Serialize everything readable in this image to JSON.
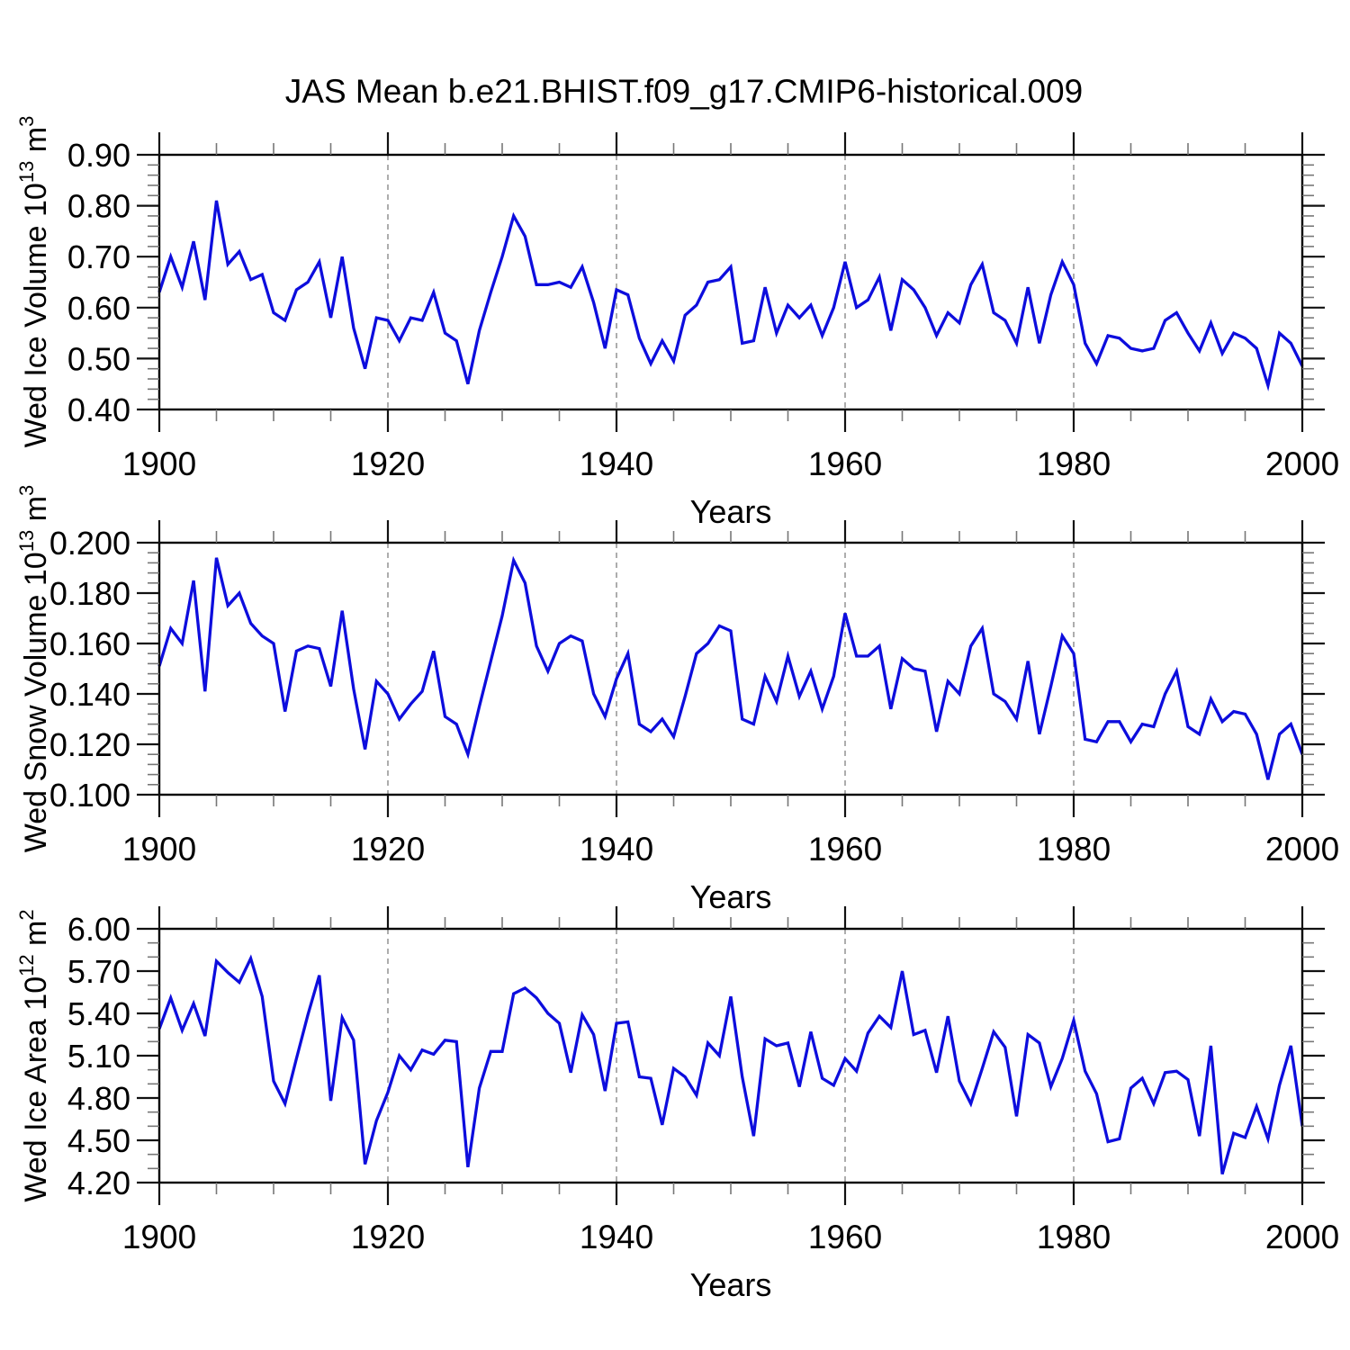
{
  "title": "JAS Mean b.e21.BHIST.f09_g17.CMIP6-historical.009",
  "chart_data": [
    {
      "type": "line",
      "ylabel": {
        "base": "Wed Ice Volume 10",
        "exp": "13",
        "unit": " m",
        "unit_exp": "3"
      },
      "xlabel": "Years",
      "series_color": "#0d0ddd",
      "axis_color": "#000000",
      "grid_color": "#8a8a8a",
      "grid_style": "dashed",
      "legend": "none",
      "xlim": [
        1900,
        2000
      ],
      "ylim": [
        0.4,
        0.9
      ],
      "xticks": [
        1900,
        1920,
        1940,
        1960,
        1980,
        2000
      ],
      "xtick_labels": [
        "1900",
        "1920",
        "1940",
        "1960",
        "1980",
        "2000"
      ],
      "x_minor_step": 5,
      "yticks": [
        0.4,
        0.5,
        0.6,
        0.7,
        0.8,
        0.9
      ],
      "ytick_labels": [
        "0.40",
        "0.50",
        "0.60",
        "0.70",
        "0.80",
        "0.90"
      ],
      "y_minor_step": 0.02,
      "grid_x": [
        1920,
        1940,
        1960,
        1980
      ],
      "x_start": 1900,
      "x_step": 1,
      "values": [
        0.63,
        0.7,
        0.64,
        0.73,
        0.615,
        0.81,
        0.685,
        0.71,
        0.655,
        0.665,
        0.59,
        0.575,
        0.635,
        0.65,
        0.69,
        0.58,
        0.7,
        0.56,
        0.48,
        0.58,
        0.575,
        0.535,
        0.58,
        0.575,
        0.63,
        0.55,
        0.535,
        0.45,
        0.555,
        0.63,
        0.7,
        0.78,
        0.74,
        0.645,
        0.645,
        0.65,
        0.64,
        0.68,
        0.61,
        0.52,
        0.635,
        0.625,
        0.54,
        0.49,
        0.535,
        0.495,
        0.585,
        0.605,
        0.65,
        0.655,
        0.68,
        0.53,
        0.535,
        0.64,
        0.55,
        0.605,
        0.58,
        0.605,
        0.545,
        0.6,
        0.69,
        0.6,
        0.615,
        0.66,
        0.555,
        0.655,
        0.635,
        0.6,
        0.545,
        0.59,
        0.57,
        0.645,
        0.685,
        0.59,
        0.575,
        0.53,
        0.64,
        0.53,
        0.625,
        0.69,
        0.645,
        0.53,
        0.49,
        0.545,
        0.54,
        0.52,
        0.515,
        0.52,
        0.575,
        0.59,
        0.55,
        0.515,
        0.57,
        0.51,
        0.55,
        0.54,
        0.52,
        0.447,
        0.55,
        0.53,
        0.485
      ]
    },
    {
      "type": "line",
      "ylabel": {
        "base": "Wed Snow Volume 10",
        "exp": "13",
        "unit": " m",
        "unit_exp": "3"
      },
      "xlabel": "Years",
      "series_color": "#0d0ddd",
      "axis_color": "#000000",
      "grid_color": "#8a8a8a",
      "grid_style": "dashed",
      "legend": "none",
      "xlim": [
        1900,
        2000
      ],
      "ylim": [
        0.1,
        0.2
      ],
      "xticks": [
        1900,
        1920,
        1940,
        1960,
        1980,
        2000
      ],
      "xtick_labels": [
        "1900",
        "1920",
        "1940",
        "1960",
        "1980",
        "2000"
      ],
      "x_minor_step": 5,
      "yticks": [
        0.1,
        0.12,
        0.14,
        0.16,
        0.18,
        0.2
      ],
      "ytick_labels": [
        "0.100",
        "0.120",
        "0.140",
        "0.160",
        "0.180",
        "0.200"
      ],
      "y_minor_step": 0.004,
      "grid_x": [
        1920,
        1940,
        1960,
        1980
      ],
      "x_start": 1900,
      "x_step": 1,
      "values": [
        0.151,
        0.166,
        0.16,
        0.185,
        0.141,
        0.194,
        0.175,
        0.18,
        0.168,
        0.163,
        0.16,
        0.133,
        0.157,
        0.159,
        0.158,
        0.143,
        0.173,
        0.142,
        0.118,
        0.145,
        0.14,
        0.13,
        0.136,
        0.141,
        0.157,
        0.131,
        0.128,
        0.116,
        0.135,
        0.153,
        0.171,
        0.193,
        0.184,
        0.159,
        0.149,
        0.16,
        0.163,
        0.161,
        0.14,
        0.131,
        0.146,
        0.156,
        0.128,
        0.125,
        0.13,
        0.123,
        0.139,
        0.156,
        0.16,
        0.167,
        0.165,
        0.13,
        0.128,
        0.147,
        0.137,
        0.155,
        0.139,
        0.149,
        0.134,
        0.147,
        0.172,
        0.155,
        0.155,
        0.159,
        0.134,
        0.154,
        0.15,
        0.149,
        0.125,
        0.145,
        0.14,
        0.159,
        0.166,
        0.14,
        0.137,
        0.13,
        0.153,
        0.124,
        0.143,
        0.163,
        0.156,
        0.122,
        0.121,
        0.129,
        0.129,
        0.121,
        0.128,
        0.127,
        0.14,
        0.149,
        0.127,
        0.124,
        0.138,
        0.129,
        0.133,
        0.132,
        0.124,
        0.106,
        0.124,
        0.128,
        0.116
      ]
    },
    {
      "type": "line",
      "ylabel": {
        "base": "Wed Ice Area 10",
        "exp": "12",
        "unit": " m",
        "unit_exp": "2"
      },
      "xlabel": "Years",
      "series_color": "#0d0ddd",
      "axis_color": "#000000",
      "grid_color": "#8a8a8a",
      "grid_style": "dashed",
      "legend": "none",
      "xlim": [
        1900,
        2000
      ],
      "ylim": [
        4.2,
        6.0
      ],
      "xticks": [
        1900,
        1920,
        1940,
        1960,
        1980,
        2000
      ],
      "xtick_labels": [
        "1900",
        "1920",
        "1940",
        "1960",
        "1980",
        "2000"
      ],
      "x_minor_step": 5,
      "yticks": [
        4.2,
        4.5,
        4.8,
        5.1,
        5.4,
        5.7,
        6.0
      ],
      "ytick_labels": [
        "4.20",
        "4.50",
        "4.80",
        "5.10",
        "5.40",
        "5.70",
        "6.00"
      ],
      "y_minor_step": 0.1,
      "grid_x": [
        1920,
        1940,
        1960,
        1980
      ],
      "x_start": 1900,
      "x_step": 1,
      "values": [
        5.29,
        5.51,
        5.28,
        5.47,
        5.24,
        5.77,
        5.69,
        5.62,
        5.79,
        5.52,
        4.92,
        4.76,
        5.08,
        5.39,
        5.67,
        4.78,
        5.37,
        5.21,
        4.33,
        4.64,
        4.84,
        5.1,
        5.0,
        5.14,
        5.11,
        5.21,
        5.2,
        4.31,
        4.87,
        5.13,
        5.13,
        5.54,
        5.58,
        5.51,
        5.4,
        5.33,
        4.98,
        5.39,
        5.25,
        4.85,
        5.33,
        5.34,
        4.95,
        4.94,
        4.61,
        5.01,
        4.95,
        4.82,
        5.19,
        5.1,
        5.52,
        4.95,
        4.53,
        5.22,
        5.17,
        5.19,
        4.88,
        5.27,
        4.94,
        4.89,
        5.08,
        4.99,
        5.26,
        5.38,
        5.3,
        5.7,
        5.25,
        5.28,
        4.98,
        5.38,
        4.92,
        4.76,
        5.01,
        5.27,
        5.16,
        4.67,
        5.25,
        5.19,
        4.88,
        5.08,
        5.35,
        4.99,
        4.83,
        4.49,
        4.51,
        4.87,
        4.94,
        4.76,
        4.98,
        4.99,
        4.93,
        4.53,
        5.17,
        4.26,
        4.55,
        4.52,
        4.74,
        4.51,
        4.89,
        5.17,
        4.6
      ]
    }
  ]
}
